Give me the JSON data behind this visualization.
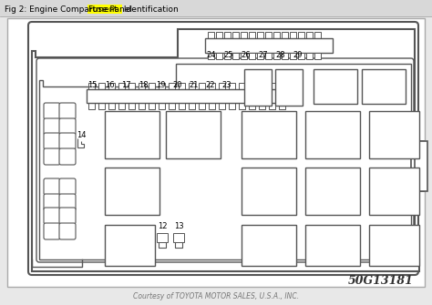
{
  "title_pre": "Fig 2: Engine Compartment ",
  "title_highlight": "Fuse Panel",
  "title_post": " Identification",
  "highlight_color": "#FFFF00",
  "bg_color": "#e8e8e8",
  "diagram_bg": "#ffffff",
  "line_color": "#555555",
  "copyright": "Courtesy of TOYOTA MOTOR SALES, U.S.A., INC.",
  "part_number": "50G13181",
  "fuse_labels_top": [
    "24",
    "25",
    "26",
    "27",
    "28",
    "29"
  ],
  "fuse_labels_mid": [
    "15",
    "16",
    "17",
    "18",
    "19",
    "20",
    "21",
    "22",
    "23"
  ],
  "label_14": "14",
  "label_12": "12",
  "label_13": "13"
}
